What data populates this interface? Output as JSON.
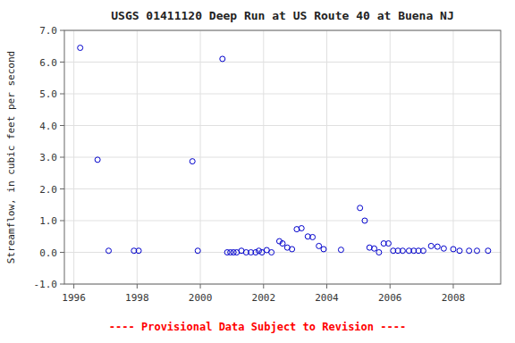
{
  "chart_data": {
    "type": "scatter",
    "title": "USGS 01411120 Deep Run at US Route 40 at Buena NJ",
    "y_label": "Streamflow, in cubic feet per second",
    "annotations": [
      {
        "text": "---- Provisional Data Subject to Revision ----",
        "color": "#ff0000"
      }
    ],
    "color": "#0000CC",
    "marker": "open-circle",
    "grid": true,
    "xlim": [
      1995.7,
      2009.5
    ],
    "ylim": [
      -1.0,
      7.0
    ],
    "xticks": [
      1996,
      1998,
      2000,
      2002,
      2004,
      2006,
      2008
    ],
    "yticks": [
      {
        "value": -1.0,
        "label": "-1.0"
      },
      {
        "value": 0.0,
        "label": "0.0"
      },
      {
        "value": 1.0,
        "label": "1.0"
      },
      {
        "value": 2.0,
        "label": "2.0"
      },
      {
        "value": 3.0,
        "label": "3.0"
      },
      {
        "value": 4.0,
        "label": "4.0"
      },
      {
        "value": 5.0,
        "label": "5.0"
      },
      {
        "value": 6.0,
        "label": "6.0"
      },
      {
        "value": 7.0,
        "label": "7.0"
      }
    ],
    "x": [
      1996.2,
      1996.75,
      1997.1,
      1997.9,
      1998.05,
      1999.75,
      1999.92,
      2000.7,
      2000.85,
      2000.95,
      2001.05,
      2001.15,
      2001.3,
      2001.45,
      2001.6,
      2001.75,
      2001.85,
      2001.95,
      2002.1,
      2002.25,
      2002.5,
      2002.6,
      2002.75,
      2002.9,
      2003.05,
      2003.2,
      2003.4,
      2003.55,
      2003.75,
      2003.9,
      2004.45,
      2005.05,
      2005.2,
      2005.35,
      2005.5,
      2005.65,
      2005.8,
      2005.95,
      2006.1,
      2006.25,
      2006.4,
      2006.6,
      2006.75,
      2006.9,
      2007.05,
      2007.3,
      2007.5,
      2007.7,
      2008.0,
      2008.2,
      2008.5,
      2008.75,
      2009.1
    ],
    "values": [
      6.45,
      2.92,
      0.05,
      0.05,
      0.05,
      2.87,
      0.05,
      6.1,
      0.0,
      0.0,
      0.0,
      0.0,
      0.05,
      0.0,
      0.0,
      0.0,
      0.05,
      0.0,
      0.07,
      0.0,
      0.35,
      0.28,
      0.15,
      0.1,
      0.73,
      0.76,
      0.5,
      0.48,
      0.2,
      0.1,
      0.08,
      1.4,
      1.0,
      0.15,
      0.12,
      0.0,
      0.28,
      0.28,
      0.05,
      0.05,
      0.05,
      0.05,
      0.05,
      0.05,
      0.05,
      0.2,
      0.18,
      0.12,
      0.1,
      0.05,
      0.05,
      0.05,
      0.05
    ]
  }
}
